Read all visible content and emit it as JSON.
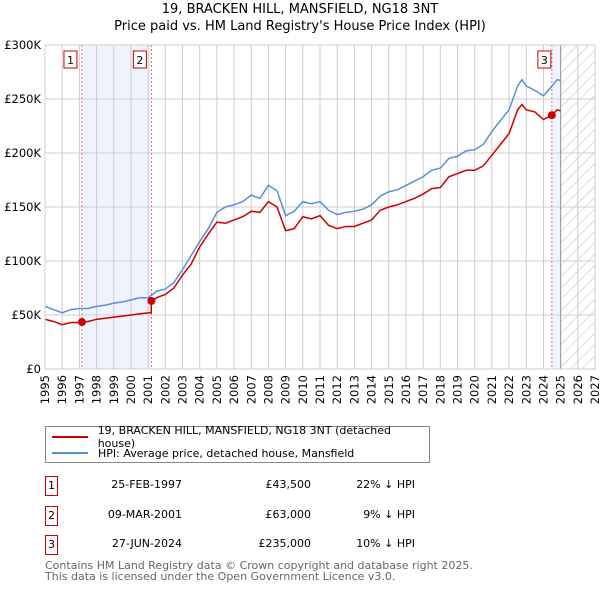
{
  "chart_data": {
    "type": "line",
    "title": "19, BRACKEN HILL, MANSFIELD, NG18 3NT",
    "subtitle": "Price paid vs. HM Land Registry's House Price Index (HPI)",
    "xlim": [
      1995,
      2027
    ],
    "ylim": [
      0,
      300000
    ],
    "x_ticks": [
      "1995",
      "1996",
      "1997",
      "1998",
      "1999",
      "2000",
      "2001",
      "2002",
      "2003",
      "2004",
      "2005",
      "2006",
      "2007",
      "2008",
      "2009",
      "2010",
      "2011",
      "2012",
      "2013",
      "2014",
      "2015",
      "2016",
      "2017",
      "2018",
      "2019",
      "2020",
      "2021",
      "2022",
      "2023",
      "2024",
      "2025",
      "2026",
      "2027"
    ],
    "y_ticks": [
      {
        "v": 0,
        "label": "£0"
      },
      {
        "v": 50000,
        "label": "£50K"
      },
      {
        "v": 100000,
        "label": "£100K"
      },
      {
        "v": 150000,
        "label": "£150K"
      },
      {
        "v": 200000,
        "label": "£200K"
      },
      {
        "v": 250000,
        "label": "£250K"
      },
      {
        "v": 300000,
        "label": "£300K"
      }
    ],
    "grid": true,
    "shaded_ranges": [
      [
        1997.15,
        2001.19
      ],
      [
        2024.49,
        2025.0
      ]
    ],
    "forecast_hatch": [
      2025.0,
      2027
    ],
    "series": [
      {
        "name": "19, BRACKEN HILL, MANSFIELD, NG18 3NT (detached house)",
        "color": "#cc0000",
        "x": [
          1995,
          1995.5,
          1996,
          1996.5,
          1997,
          1997.15,
          1997.5,
          1998,
          1998.5,
          1999,
          1999.5,
          2000,
          2000.5,
          2001,
          2001.18,
          2001.19,
          2001.5,
          2002,
          2002.5,
          2003,
          2003.5,
          2004,
          2004.5,
          2005,
          2005.5,
          2006,
          2006.5,
          2007,
          2007.5,
          2008,
          2008.5,
          2009,
          2009.5,
          2010,
          2010.5,
          2011,
          2011.5,
          2012,
          2012.5,
          2013,
          2013.5,
          2014,
          2014.5,
          2015,
          2015.5,
          2016,
          2016.5,
          2017,
          2017.5,
          2018,
          2018.5,
          2019,
          2019.5,
          2020,
          2020.5,
          2021,
          2021.5,
          2022,
          2022.5,
          2022.75,
          2023,
          2023.5,
          2024,
          2024.49,
          2024.8,
          2025
        ],
        "y": [
          46000,
          44000,
          41000,
          43000,
          43000,
          43500,
          44000,
          46000,
          47000,
          48000,
          49000,
          50000,
          51000,
          52000,
          52000,
          63000,
          66000,
          69000,
          75000,
          87000,
          97000,
          113000,
          125000,
          136000,
          135000,
          138000,
          141000,
          146000,
          145000,
          155000,
          150000,
          128000,
          130000,
          141000,
          139000,
          142000,
          133000,
          130000,
          132000,
          132000,
          135000,
          138000,
          147000,
          150000,
          152000,
          155000,
          158000,
          162000,
          167000,
          168000,
          178000,
          181000,
          184000,
          184000,
          188000,
          198000,
          208000,
          218000,
          240000,
          245000,
          240000,
          238000,
          231000,
          235000,
          240000,
          239000
        ]
      },
      {
        "name": "HPI: Average price, detached house, Mansfield",
        "color": "#5b8fd4",
        "x": [
          1995,
          1995.5,
          1996,
          1996.5,
          1997,
          1997.5,
          1998,
          1998.5,
          1999,
          1999.5,
          2000,
          2000.5,
          2001,
          2001.5,
          2002,
          2002.5,
          2003,
          2003.5,
          2004,
          2004.5,
          2005,
          2005.5,
          2006,
          2006.5,
          2007,
          2007.5,
          2008,
          2008.5,
          2009,
          2009.5,
          2010,
          2010.5,
          2011,
          2011.5,
          2012,
          2012.5,
          2013,
          2013.5,
          2014,
          2014.5,
          2015,
          2015.5,
          2016,
          2016.5,
          2017,
          2017.5,
          2018,
          2018.5,
          2019,
          2019.5,
          2020,
          2020.5,
          2021,
          2021.5,
          2022,
          2022.5,
          2022.75,
          2023,
          2023.5,
          2024,
          2024.5,
          2024.8,
          2025
        ],
        "y": [
          58000,
          55000,
          52000,
          55000,
          56000,
          56000,
          58000,
          59000,
          61000,
          62000,
          64000,
          66000,
          66000,
          72000,
          74000,
          80000,
          92000,
          105000,
          118000,
          130000,
          145000,
          150000,
          152000,
          155000,
          161000,
          158000,
          170000,
          165000,
          142000,
          146000,
          155000,
          153000,
          155000,
          147000,
          143000,
          145000,
          146000,
          148000,
          152000,
          160000,
          164000,
          166000,
          170000,
          174000,
          178000,
          184000,
          186000,
          195000,
          197000,
          202000,
          203000,
          208000,
          220000,
          230000,
          240000,
          262000,
          268000,
          262000,
          258000,
          253000,
          262000,
          268000,
          267000
        ]
      }
    ],
    "sales": [
      {
        "n": "1",
        "x": 1997.15,
        "y": 43500,
        "date": "25-FEB-1997",
        "price": "£43,500",
        "hpi": "22% ↓ HPI"
      },
      {
        "n": "2",
        "x": 2001.19,
        "y": 63000,
        "date": "09-MAR-2001",
        "price": "£63,000",
        "hpi": "9% ↓ HPI"
      },
      {
        "n": "3",
        "x": 2024.49,
        "y": 235000,
        "date": "27-JUN-2024",
        "price": "£235,000",
        "hpi": "10% ↓ HPI"
      }
    ]
  },
  "footer": {
    "line1": "Contains HM Land Registry data © Crown copyright and database right 2025.",
    "line2": "This data is licensed under the Open Government Licence v3.0."
  }
}
